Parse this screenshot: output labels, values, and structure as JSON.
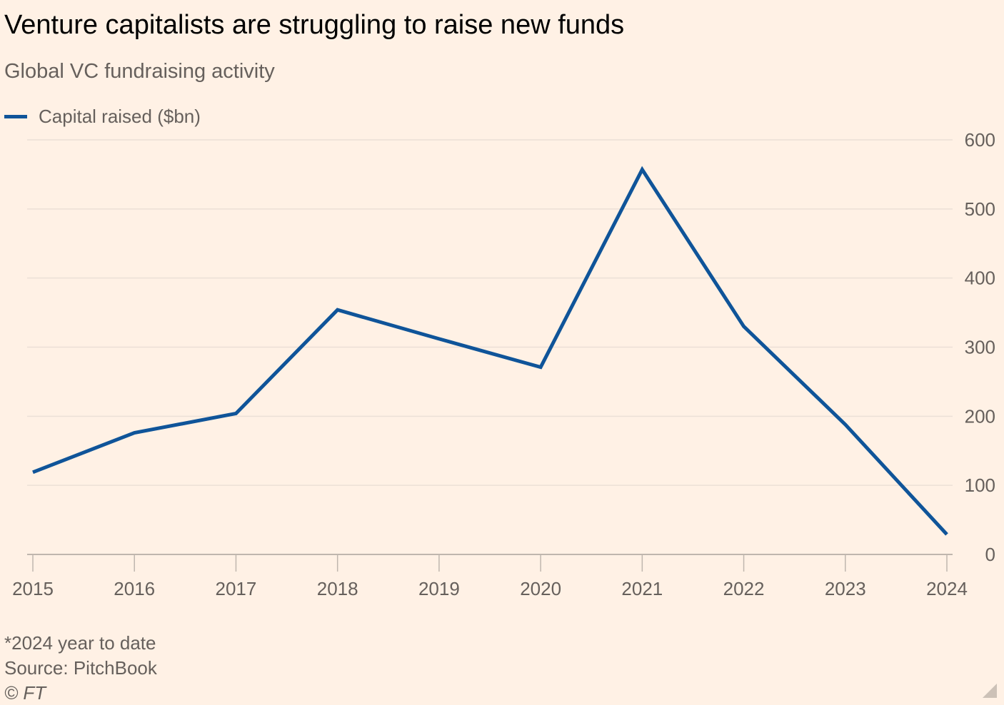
{
  "chart_data": {
    "type": "line",
    "title": "Venture capitalists are struggling to raise new funds",
    "subtitle": "Global VC fundraising activity",
    "xlabel": "",
    "ylabel": "",
    "ylim": [
      0,
      600
    ],
    "yticks": [
      "0",
      "100",
      "200",
      "300",
      "400",
      "500",
      "600"
    ],
    "categories": [
      "2015",
      "2016",
      "2017",
      "2018",
      "2019",
      "2020",
      "2021",
      "2022",
      "2023",
      "2024"
    ],
    "series": [
      {
        "name": "Capital raised ($bn)",
        "color": "#0f5499",
        "values": [
          119,
          176,
          204,
          354,
          312,
          271,
          557,
          330,
          188,
          29
        ]
      }
    ],
    "grid": true,
    "legend_position": "top-left"
  },
  "footer": {
    "note": "*2024 year to date",
    "source": "Source: PitchBook",
    "credit": "© FT"
  }
}
